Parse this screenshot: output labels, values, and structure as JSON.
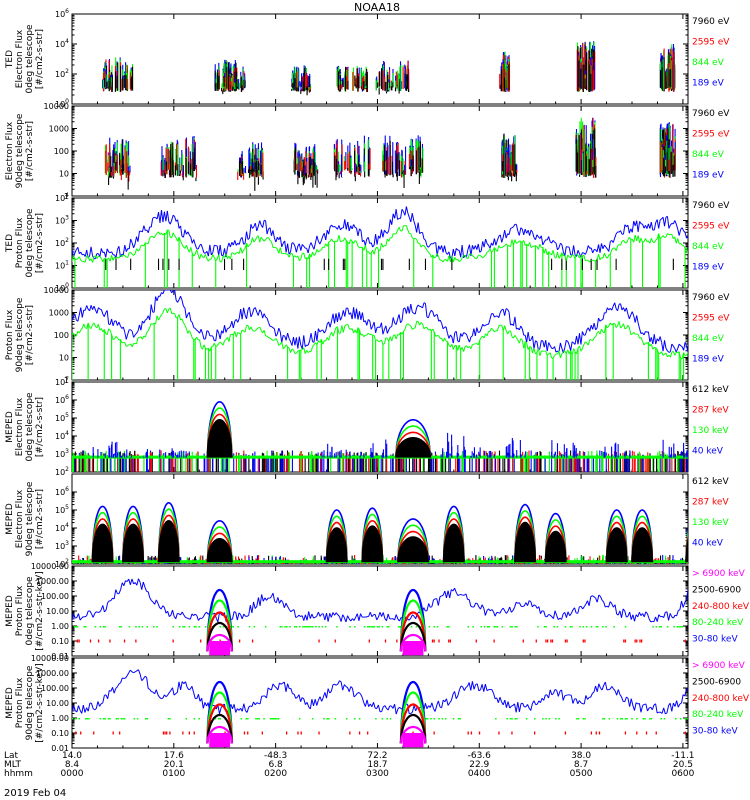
{
  "title": "NOAA18",
  "date_label": "2019 Feb 04",
  "footer": {
    "row_labels": [
      "Lat",
      "MLT",
      "hhmm"
    ],
    "ticks": [
      {
        "lat": "14.0",
        "mlt": "8.4",
        "hhmm": "0000"
      },
      {
        "lat": "17.6",
        "mlt": "20.1",
        "hhmm": "0100"
      },
      {
        "lat": "-48.3",
        "mlt": "6.8",
        "hhmm": "0200"
      },
      {
        "lat": "72.2",
        "mlt": "18.7",
        "hhmm": "0300"
      },
      {
        "lat": "-63.6",
        "mlt": "22.9",
        "hhmm": "0400"
      },
      {
        "lat": "38.0",
        "mlt": "8.7",
        "hhmm": "0500"
      },
      {
        "lat": "-11.1",
        "mlt": "20.5",
        "hhmm": "0600"
      }
    ]
  },
  "colors": {
    "black": "#000000",
    "red": "#ff0000",
    "green": "#00ff00",
    "blue": "#0000ff",
    "magenta": "#ff00ff"
  },
  "chart_data": [
    {
      "type": "scatter",
      "ylabel_lines": [
        "TED",
        "Electron Flux",
        "0deg telescope",
        "[#/cm2-s-str]"
      ],
      "yscale": "log",
      "ylim": [
        1,
        1000000
      ],
      "ytick_labels": [
        "10^0",
        "10^2",
        "10^4",
        "10^6"
      ],
      "legend": [
        {
          "name": "7960 eV",
          "color": "#000000"
        },
        {
          "name": "2595 eV",
          "color": "#ff0000"
        },
        {
          "name": "844 eV",
          "color": "#00ff00"
        },
        {
          "name": "189 eV",
          "color": "#0000ff"
        }
      ],
      "bursts": [
        {
          "t": 0.45,
          "w": 0.3,
          "peak": 3.2
        },
        {
          "t": 1.55,
          "w": 0.3,
          "peak": 2.8
        },
        {
          "t": 1.55,
          "w": 0.12,
          "peak": 3.0
        },
        {
          "t": 2.25,
          "w": 0.18,
          "peak": 2.6
        },
        {
          "t": 2.75,
          "w": 0.3,
          "peak": 2.6
        },
        {
          "t": 3.15,
          "w": 0.35,
          "peak": 2.9
        },
        {
          "t": 4.25,
          "w": 0.1,
          "peak": 3.6
        },
        {
          "t": 5.05,
          "w": 0.18,
          "peak": 4.2
        },
        {
          "t": 5.85,
          "w": 0.15,
          "peak": 4.0
        }
      ]
    },
    {
      "type": "scatter",
      "ylabel_lines": [
        "Electron Flux",
        "90deg telescope",
        "[#/cm2-s-str]"
      ],
      "yscale": "log",
      "ylim": [
        1,
        10000
      ],
      "ytick_labels": [
        "1",
        "10",
        "100",
        "1000",
        "10000"
      ],
      "legend": [
        {
          "name": "7960 eV",
          "color": "#000000"
        },
        {
          "name": "2595 eV",
          "color": "#ff0000"
        },
        {
          "name": "844 eV",
          "color": "#00ff00"
        },
        {
          "name": "189 eV",
          "color": "#0000ff"
        }
      ],
      "bursts": [
        {
          "t": 0.45,
          "w": 0.25,
          "peak": 2.6
        },
        {
          "t": 1.05,
          "w": 0.35,
          "peak": 2.7
        },
        {
          "t": 1.75,
          "w": 0.25,
          "peak": 2.4
        },
        {
          "t": 2.3,
          "w": 0.25,
          "peak": 2.4
        },
        {
          "t": 2.75,
          "w": 0.35,
          "peak": 2.7
        },
        {
          "t": 3.25,
          "w": 0.4,
          "peak": 2.7
        },
        {
          "t": 4.3,
          "w": 0.15,
          "peak": 2.8
        },
        {
          "t": 5.05,
          "w": 0.2,
          "peak": 3.5
        },
        {
          "t": 5.85,
          "w": 0.15,
          "peak": 3.3
        }
      ]
    },
    {
      "type": "scatter",
      "ylabel_lines": [
        "TED",
        "Proton Flux",
        "0deg telescope",
        "[#/cm2-s-str]"
      ],
      "yscale": "log",
      "ylim": [
        1,
        10000
      ],
      "ytick_labels": [
        "10^0",
        "10^1",
        "10^2",
        "10^3",
        "10^4"
      ],
      "legend": [
        {
          "name": "7960 eV",
          "color": "#000000"
        },
        {
          "name": "2595 eV",
          "color": "#ff0000"
        },
        {
          "name": "844 eV",
          "color": "#00ff00"
        },
        {
          "name": "189 eV",
          "color": "#0000ff"
        }
      ],
      "continuous": true,
      "base_log": [
        1.0,
        1.6
      ],
      "humps": [
        {
          "t": 0.9,
          "w": 0.25,
          "amp": 1.6
        },
        {
          "t": 1.85,
          "w": 0.2,
          "amp": 1.2
        },
        {
          "t": 2.65,
          "w": 0.25,
          "amp": 1.2
        },
        {
          "t": 3.25,
          "w": 0.2,
          "amp": 1.8
        },
        {
          "t": 4.4,
          "w": 0.3,
          "amp": 1.0
        },
        {
          "t": 5.5,
          "w": 0.2,
          "amp": 1.1
        },
        {
          "t": 5.85,
          "w": 0.2,
          "amp": 1.3
        }
      ]
    },
    {
      "type": "scatter",
      "ylabel_lines": [
        "Proton Flux",
        "90deg telescope",
        "[#/cm2-s-str]"
      ],
      "yscale": "log",
      "ylim": [
        1,
        10000
      ],
      "ytick_labels": [
        "1",
        "10",
        "100",
        "1000",
        "10000"
      ],
      "legend": [
        {
          "name": "7960 eV",
          "color": "#000000"
        },
        {
          "name": "2595 eV",
          "color": "#ff0000"
        },
        {
          "name": "844 eV",
          "color": "#00ff00"
        },
        {
          "name": "189 eV",
          "color": "#0000ff"
        }
      ],
      "continuous": true,
      "base_log": [
        0.7,
        1.5
      ],
      "humps": [
        {
          "t": 0.2,
          "w": 0.3,
          "amp": 1.8
        },
        {
          "t": 0.95,
          "w": 0.25,
          "amp": 2.6
        },
        {
          "t": 1.75,
          "w": 0.3,
          "amp": 1.6
        },
        {
          "t": 2.7,
          "w": 0.3,
          "amp": 1.6
        },
        {
          "t": 3.4,
          "w": 0.3,
          "amp": 1.8
        },
        {
          "t": 4.2,
          "w": 0.25,
          "amp": 1.6
        },
        {
          "t": 5.35,
          "w": 0.3,
          "amp": 1.8
        }
      ]
    },
    {
      "type": "scatter",
      "ylabel_lines": [
        "MEPED",
        "Electron Flux",
        "0deg telescope",
        "[#/cm2-s-str]"
      ],
      "yscale": "log",
      "ylim": [
        100,
        10000000
      ],
      "ytick_labels": [
        "10^2",
        "10^3",
        "10^4",
        "10^5",
        "10^6",
        "10^7"
      ],
      "legend": [
        {
          "name": "612 keV",
          "color": "#000000"
        },
        {
          "name": "287 keV",
          "color": "#ff0000"
        },
        {
          "name": "130 keV",
          "color": "#00ff00"
        },
        {
          "name": "40 keV",
          "color": "#0000ff"
        }
      ],
      "floor_log": 2.8,
      "domes": [
        {
          "t": 1.45,
          "w": 0.12,
          "top": 5.9
        },
        {
          "t": 3.35,
          "w": 0.17,
          "top": 4.9
        }
      ],
      "spikes": [
        {
          "t": 0.35,
          "amp": 3.7
        },
        {
          "t": 0.6,
          "amp": 3.4
        },
        {
          "t": 1.0,
          "amp": 3.4
        },
        {
          "t": 2.6,
          "amp": 3.6
        },
        {
          "t": 2.95,
          "amp": 3.9
        },
        {
          "t": 3.75,
          "amp": 4.2
        },
        {
          "t": 4.05,
          "amp": 3.4
        },
        {
          "t": 4.35,
          "amp": 4.0
        },
        {
          "t": 4.85,
          "amp": 3.8
        },
        {
          "t": 5.35,
          "amp": 3.7
        },
        {
          "t": 5.95,
          "amp": 3.8
        }
      ]
    },
    {
      "type": "scatter",
      "ylabel_lines": [
        "MEPED",
        "Electron Flux",
        "90deg telescope",
        "[#/cm2-s-str]"
      ],
      "yscale": "log",
      "ylim": [
        100,
        10000000
      ],
      "ytick_labels": [
        "10^2",
        "10^3",
        "10^4",
        "10^5",
        "10^6"
      ],
      "legend": [
        {
          "name": "612 keV",
          "color": "#000000"
        },
        {
          "name": "287 keV",
          "color": "#ff0000"
        },
        {
          "name": "130 keV",
          "color": "#00ff00"
        },
        {
          "name": "40 keV",
          "color": "#0000ff"
        }
      ],
      "floor_log": 2.1,
      "domes": [
        {
          "t": 0.3,
          "w": 0.1,
          "top": 5.2
        },
        {
          "t": 0.6,
          "w": 0.1,
          "top": 5.2
        },
        {
          "t": 0.95,
          "w": 0.1,
          "top": 5.4
        },
        {
          "t": 1.45,
          "w": 0.12,
          "top": 4.4
        },
        {
          "t": 2.6,
          "w": 0.1,
          "top": 5.0
        },
        {
          "t": 2.95,
          "w": 0.1,
          "top": 5.1
        },
        {
          "t": 3.35,
          "w": 0.15,
          "top": 4.5
        },
        {
          "t": 3.75,
          "w": 0.1,
          "top": 5.2
        },
        {
          "t": 4.45,
          "w": 0.1,
          "top": 5.3
        },
        {
          "t": 4.75,
          "w": 0.1,
          "top": 4.8
        },
        {
          "t": 5.35,
          "w": 0.1,
          "top": 5.0
        },
        {
          "t": 5.6,
          "w": 0.1,
          "top": 5.0
        },
        {
          "t": 6.15,
          "w": 0.12,
          "top": 5.2
        },
        {
          "t": 6.45,
          "w": 0.12,
          "top": 5.4
        }
      ]
    },
    {
      "type": "scatter",
      "ylabel_lines": [
        "MEPED",
        "Proton Flux",
        "0deg telescope",
        "[#/cm2-s-str-keV]"
      ],
      "yscale": "log",
      "ylim": [
        0.01,
        10000
      ],
      "ytick_labels": [
        "0.01",
        "0.10",
        "1.00",
        "10.00",
        "100.00",
        "1000.00",
        "10000.00"
      ],
      "legend": [
        {
          "name": "> 6900 keV",
          "color": "#ff00ff"
        },
        {
          "name": "2500-6900",
          "color": "#000000"
        },
        {
          "name": "240-800 keV",
          "color": "#ff0000"
        },
        {
          "name": "80-240 keV",
          "color": "#00ff00"
        },
        {
          "name": "30-80 keV",
          "color": "#0000ff"
        }
      ],
      "saa": [
        {
          "t": 1.45,
          "w": 0.12
        },
        {
          "t": 3.35,
          "w": 0.12
        }
      ],
      "bursts": [
        {
          "t": 0.6,
          "w": 0.25,
          "peak": 3.0
        },
        {
          "t": 1.95,
          "w": 0.2,
          "peak": 2.0
        },
        {
          "t": 3.75,
          "w": 0.25,
          "peak": 2.2
        },
        {
          "t": 4.45,
          "w": 0.2,
          "peak": 1.6
        },
        {
          "t": 5.15,
          "w": 0.2,
          "peak": 1.8
        },
        {
          "t": 6.15,
          "w": 0.15,
          "peak": 3.0
        }
      ]
    },
    {
      "type": "scatter",
      "ylabel_lines": [
        "MEPED",
        "Proton Flux",
        "90deg telescope",
        "[#/cm2-s-str-keV]"
      ],
      "yscale": "log",
      "ylim": [
        0.01,
        10000
      ],
      "ytick_labels": [
        "0.01",
        "0.10",
        "1.00",
        "10.00",
        "100.00",
        "1000.00",
        "10000.00"
      ],
      "legend": [
        {
          "name": "> 6900 keV",
          "color": "#ff00ff"
        },
        {
          "name": "2500-6900",
          "color": "#000000"
        },
        {
          "name": "240-800 keV",
          "color": "#ff0000"
        },
        {
          "name": "80-240 keV",
          "color": "#00ff00"
        },
        {
          "name": "30-80 keV",
          "color": "#0000ff"
        }
      ],
      "saa": [
        {
          "t": 1.45,
          "w": 0.12
        },
        {
          "t": 3.35,
          "w": 0.12
        }
      ],
      "bursts": [
        {
          "t": 0.6,
          "w": 0.25,
          "peak": 3.0
        },
        {
          "t": 1.1,
          "w": 0.15,
          "peak": 2.2
        },
        {
          "t": 2.05,
          "w": 0.2,
          "peak": 2.2
        },
        {
          "t": 2.65,
          "w": 0.2,
          "peak": 2.2
        },
        {
          "t": 3.95,
          "w": 0.25,
          "peak": 2.2
        },
        {
          "t": 4.75,
          "w": 0.2,
          "peak": 1.6
        },
        {
          "t": 5.25,
          "w": 0.2,
          "peak": 2.2
        },
        {
          "t": 6.15,
          "w": 0.15,
          "peak": 3.0
        }
      ]
    }
  ]
}
